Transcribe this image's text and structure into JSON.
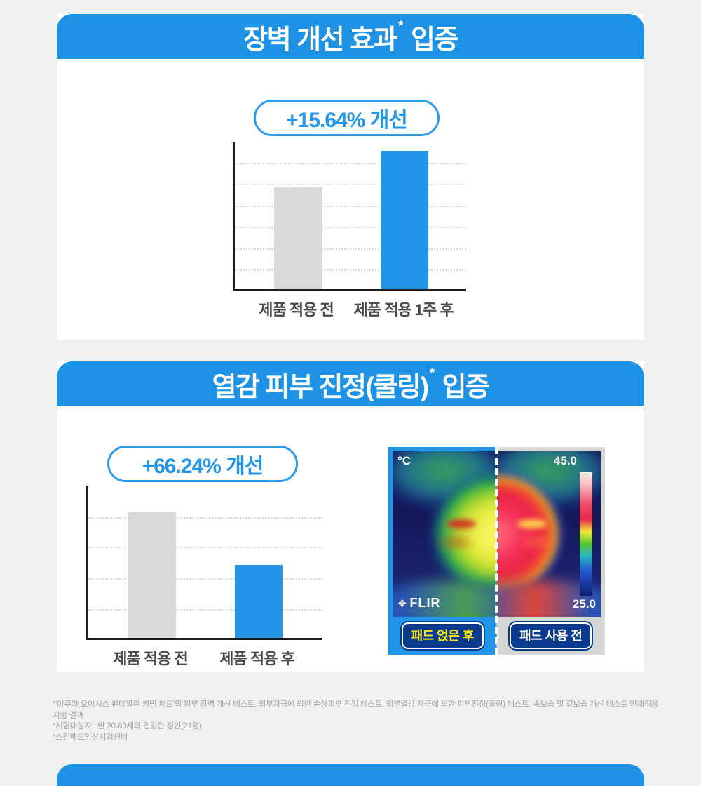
{
  "page": {
    "background": "#f0f1f1",
    "accent_blue": "#1e93e6",
    "bar_blue": "#2196e8",
    "bar_gray": "#d9d9d9",
    "navy": "#0a3a8e"
  },
  "section_barrier": {
    "header": {
      "main": "장벽 개선 효과",
      "sup": "*",
      "tail": "입증"
    },
    "badge": "+15.64% 개선"
  },
  "section_cooling": {
    "header": {
      "main": "열감 피부 진정(쿨링)",
      "sup": "*",
      "tail": "입증"
    },
    "badge": "+66.24% 개선",
    "thermal": {
      "unit_label": "°C",
      "temp_max": "45.0",
      "temp_min": "25.0",
      "flir_label": "FLIR",
      "label_after": "패드 얹은 후",
      "label_before": "패드 사용 전"
    }
  },
  "chart_data": [
    {
      "type": "bar",
      "title": "장벽 개선 효과* 입증",
      "badge": "+15.64% 개선",
      "categories": [
        "제품 적용 전",
        "제품 적용 1주 후"
      ],
      "values": [
        69,
        94
      ],
      "value_unit": "relative bar height, % of axis (no numeric scale shown)",
      "improvement_pct": 15.64,
      "colors": [
        "#d9d9d9",
        "#2196e8"
      ],
      "grid": "dotted horizontal, 6 lines",
      "ylabel": "",
      "xlabel": ""
    },
    {
      "type": "bar",
      "title": "열감 피부 진정(쿨링)* 입증",
      "badge": "+66.24% 개선",
      "categories": [
        "제품 적용 전",
        "제품 적용 후"
      ],
      "values": [
        83,
        48
      ],
      "value_unit": "relative bar height, % of axis (no numeric scale shown)",
      "improvement_pct": 66.24,
      "colors": [
        "#d9d9d9",
        "#2196e8"
      ],
      "grid": "dotted horizontal, 4 lines",
      "ylabel": "",
      "xlabel": ""
    }
  ],
  "footnotes": {
    "line1": "*'아쿠아 오아시스 판테알란 카밍 패드'의 피부 장벽 개선 테스트, 외부자극에 의한 손상피부 진정 테스트, 외부열감 자극에 의한 피부진정(쿨링) 테스트, 속보습 및 겉보습 개선 테스트 인체적용 시험 결과",
    "line2": "*시험대상자 : 만 20-60세의 건강한 성인(21명)",
    "line3": "*스킨메드임상시험센터"
  }
}
